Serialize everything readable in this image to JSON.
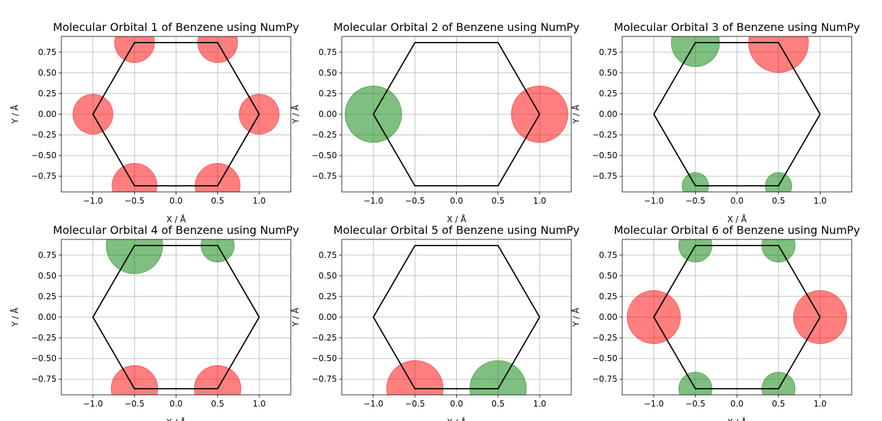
{
  "chart_data": [
    {
      "type": "scatter",
      "title": "Molecular Orbital 1 of Benzene using NumPy",
      "xlabel": "X / Å",
      "ylabel": "Y / Å",
      "xlim": [
        -1.38,
        1.38
      ],
      "ylim": [
        -0.94,
        0.94
      ],
      "xticks": [
        "−1.0",
        "−0.5",
        "0.0",
        "0.5",
        "1.0"
      ],
      "yticks": [
        "−0.75",
        "−0.50",
        "−0.25",
        "0.00",
        "0.25",
        "0.50",
        "0.75"
      ],
      "grid": true,
      "points": [
        {
          "x": 1.0,
          "y": 0.0,
          "r": 0.24,
          "sign": "+"
        },
        {
          "x": 0.5,
          "y": 0.866,
          "r": 0.24,
          "sign": "+"
        },
        {
          "x": -0.5,
          "y": 0.866,
          "r": 0.24,
          "sign": "+"
        },
        {
          "x": -1.0,
          "y": 0.0,
          "r": 0.24,
          "sign": "+"
        },
        {
          "x": -0.5,
          "y": -0.866,
          "r": 0.27,
          "sign": "+"
        },
        {
          "x": 0.5,
          "y": -0.866,
          "r": 0.27,
          "sign": "+"
        }
      ]
    },
    {
      "type": "scatter",
      "title": "Molecular Orbital 2 of Benzene using NumPy",
      "xlabel": "X / Å",
      "ylabel": "Y / Å",
      "xlim": [
        -1.38,
        1.38
      ],
      "ylim": [
        -0.94,
        0.94
      ],
      "xticks": [
        "−1.0",
        "−0.5",
        "0.0",
        "0.5",
        "1.0"
      ],
      "yticks": [
        "−0.75",
        "−0.50",
        "−0.25",
        "0.00",
        "0.25",
        "0.50",
        "0.75"
      ],
      "grid": true,
      "points": [
        {
          "x": -1.0,
          "y": 0.0,
          "r": 0.34,
          "sign": "-"
        },
        {
          "x": 1.0,
          "y": 0.0,
          "r": 0.34,
          "sign": "+"
        }
      ]
    },
    {
      "type": "scatter",
      "title": "Molecular Orbital 3 of Benzene using NumPy",
      "xlabel": "X / Å",
      "ylabel": "Y / Å",
      "xlim": [
        -1.38,
        1.38
      ],
      "ylim": [
        -0.94,
        0.94
      ],
      "xticks": [
        "−1.0",
        "−0.5",
        "0.0",
        "0.5",
        "1.0"
      ],
      "yticks": [
        "−0.75",
        "−0.50",
        "−0.25",
        "0.00",
        "0.25",
        "0.50",
        "0.75"
      ],
      "grid": true,
      "points": [
        {
          "x": -0.5,
          "y": 0.866,
          "r": 0.29,
          "sign": "-"
        },
        {
          "x": 0.5,
          "y": 0.866,
          "r": 0.36,
          "sign": "+"
        },
        {
          "x": -0.5,
          "y": -0.866,
          "r": 0.16,
          "sign": "-"
        },
        {
          "x": 0.5,
          "y": -0.866,
          "r": 0.16,
          "sign": "-"
        }
      ]
    },
    {
      "type": "scatter",
      "title": "Molecular Orbital 4 of Benzene using NumPy",
      "xlabel": "X / Å",
      "ylabel": "Y / Å",
      "xlim": [
        -1.38,
        1.38
      ],
      "ylim": [
        -0.94,
        0.94
      ],
      "xticks": [
        "−1.0",
        "−0.5",
        "0.0",
        "0.5",
        "1.0"
      ],
      "yticks": [
        "−0.75",
        "−0.50",
        "−0.25",
        "0.00",
        "0.25",
        "0.50",
        "0.75"
      ],
      "grid": true,
      "points": [
        {
          "x": -0.5,
          "y": 0.866,
          "r": 0.34,
          "sign": "-"
        },
        {
          "x": 0.5,
          "y": 0.866,
          "r": 0.2,
          "sign": "-"
        },
        {
          "x": -0.5,
          "y": -0.866,
          "r": 0.28,
          "sign": "+"
        },
        {
          "x": 0.5,
          "y": -0.866,
          "r": 0.28,
          "sign": "+"
        }
      ]
    },
    {
      "type": "scatter",
      "title": "Molecular Orbital 5 of Benzene using NumPy",
      "xlabel": "X / Å",
      "ylabel": "Y / Å",
      "xlim": [
        -1.38,
        1.38
      ],
      "ylim": [
        -0.94,
        0.94
      ],
      "xticks": [
        "−1.0",
        "−0.5",
        "0.0",
        "0.5",
        "1.0"
      ],
      "yticks": [
        "−0.75",
        "−0.50",
        "−0.25",
        "0.00",
        "0.25",
        "0.50",
        "0.75"
      ],
      "grid": true,
      "points": [
        {
          "x": -0.5,
          "y": -0.866,
          "r": 0.34,
          "sign": "+"
        },
        {
          "x": 0.5,
          "y": -0.866,
          "r": 0.34,
          "sign": "-"
        }
      ]
    },
    {
      "type": "scatter",
      "title": "Molecular Orbital 6 of Benzene using NumPy",
      "xlabel": "X / Å",
      "ylabel": "Y / Å",
      "xlim": [
        -1.38,
        1.38
      ],
      "ylim": [
        -0.94,
        0.94
      ],
      "xticks": [
        "−1.0",
        "−0.5",
        "0.0",
        "0.5",
        "1.0"
      ],
      "yticks": [
        "−0.75",
        "−0.50",
        "−0.25",
        "0.00",
        "0.25",
        "0.50",
        "0.75"
      ],
      "grid": true,
      "points": [
        {
          "x": -1.0,
          "y": 0.0,
          "r": 0.32,
          "sign": "+"
        },
        {
          "x": 1.0,
          "y": 0.0,
          "r": 0.32,
          "sign": "+"
        },
        {
          "x": -0.5,
          "y": 0.866,
          "r": 0.2,
          "sign": "-"
        },
        {
          "x": 0.5,
          "y": 0.866,
          "r": 0.2,
          "sign": "-"
        },
        {
          "x": -0.5,
          "y": -0.866,
          "r": 0.2,
          "sign": "-"
        },
        {
          "x": 0.5,
          "y": -0.866,
          "r": 0.2,
          "sign": "-"
        }
      ]
    }
  ],
  "ring": {
    "vertices": [
      [
        1.0,
        0.0
      ],
      [
        0.5,
        0.866
      ],
      [
        -0.5,
        0.866
      ],
      [
        -1.0,
        0.0
      ],
      [
        -0.5,
        -0.866
      ],
      [
        0.5,
        -0.866
      ]
    ]
  },
  "colors": {
    "positive": "#ff0000",
    "negative": "#008000",
    "ring": "#000000",
    "grid": "#b0b0b0"
  }
}
